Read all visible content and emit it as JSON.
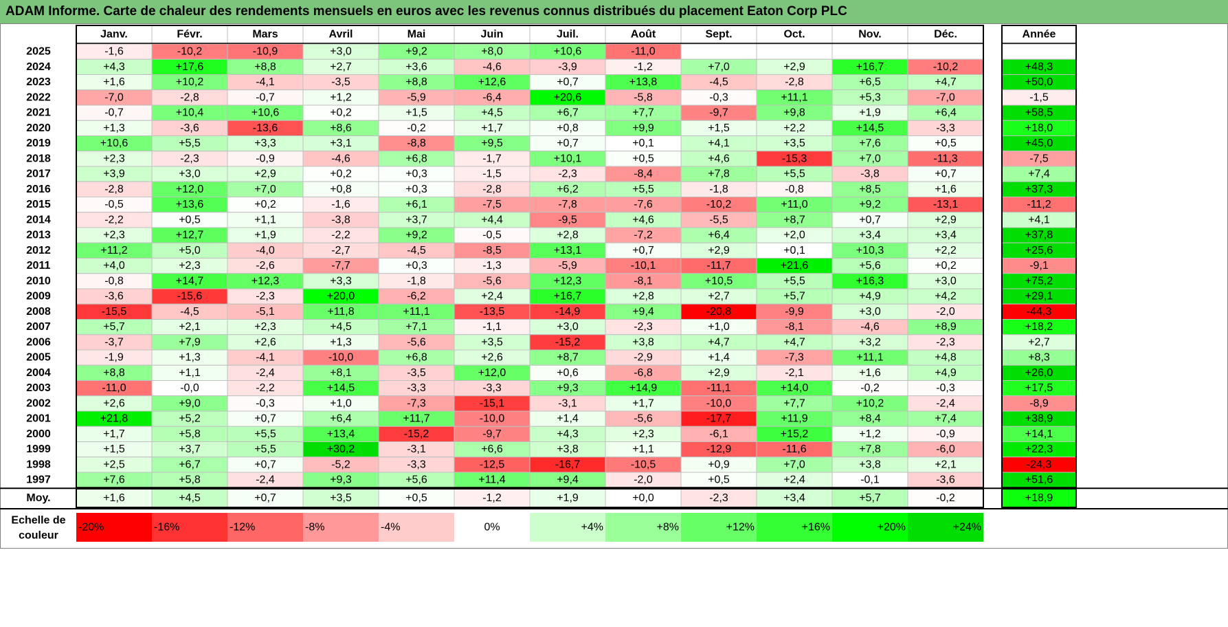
{
  "title": "ADAM Informe. Carte de chaleur des rendements mensuels en euros avec les revenus connus distribués du placement Eaton Corp PLC",
  "chart_data": {
    "type": "heatmap",
    "title": "ADAM Informe. Carte de chaleur des rendements mensuels en euros avec les revenus connus distribués du placement Eaton Corp PLC",
    "months": [
      "Janv.",
      "Févr.",
      "Mars",
      "Avril",
      "Mai",
      "Juin",
      "Juil.",
      "Août",
      "Sept.",
      "Oct.",
      "Nov.",
      "Déc."
    ],
    "year_header": "Année",
    "rows": [
      {
        "year": "2025",
        "values": [
          "-1,6",
          "-10,2",
          "-10,9",
          "+3,0",
          "+9,2",
          "+8,0",
          "+10,6",
          "-11,0",
          "",
          "",
          "",
          ""
        ],
        "annual": ""
      },
      {
        "year": "2024",
        "values": [
          "+4,3",
          "+17,6",
          "+8,8",
          "+2,7",
          "+3,6",
          "-4,6",
          "-3,9",
          "-1,2",
          "+7,0",
          "+2,9",
          "+16,7",
          "-10,2"
        ],
        "annual": "+48,3"
      },
      {
        "year": "2023",
        "values": [
          "+1,6",
          "+10,2",
          "-4,1",
          "-3,5",
          "+8,8",
          "+12,6",
          "+0,7",
          "+13,8",
          "-4,5",
          "-2,8",
          "+6,5",
          "+4,7"
        ],
        "annual": "+50,0"
      },
      {
        "year": "2022",
        "values": [
          "-7,0",
          "-2,8",
          "-0,7",
          "+1,2",
          "-5,9",
          "-6,4",
          "+20,6",
          "-5,8",
          "-0,3",
          "+11,1",
          "+5,3",
          "-7,0"
        ],
        "annual": "-1,5"
      },
      {
        "year": "2021",
        "values": [
          "-0,7",
          "+10,4",
          "+10,6",
          "+0,2",
          "+1,5",
          "+4,5",
          "+6,7",
          "+7,7",
          "-9,7",
          "+9,8",
          "+1,9",
          "+6,4"
        ],
        "annual": "+58,5"
      },
      {
        "year": "2020",
        "values": [
          "+1,3",
          "-3,6",
          "-13,6",
          "+8,6",
          "-0,2",
          "+1,7",
          "+0,8",
          "+9,9",
          "+1,5",
          "+2,2",
          "+14,5",
          "-3,3"
        ],
        "annual": "+18,0"
      },
      {
        "year": "2019",
        "values": [
          "+10,6",
          "+5,5",
          "+3,3",
          "+3,1",
          "-8,8",
          "+9,5",
          "+0,7",
          "+0,1",
          "+4,1",
          "+3,5",
          "+7,6",
          "+0,5"
        ],
        "annual": "+45,0"
      },
      {
        "year": "2018",
        "values": [
          "+2,3",
          "-2,3",
          "-0,9",
          "-4,6",
          "+6,8",
          "-1,7",
          "+10,1",
          "+0,5",
          "+4,6",
          "-15,3",
          "+7,0",
          "-11,3"
        ],
        "annual": "-7,5"
      },
      {
        "year": "2017",
        "values": [
          "+3,9",
          "+3,0",
          "+2,9",
          "+0,2",
          "+0,3",
          "-1,5",
          "-2,3",
          "-8,4",
          "+7,8",
          "+5,5",
          "-3,8",
          "+0,7"
        ],
        "annual": "+7,4"
      },
      {
        "year": "2016",
        "values": [
          "-2,8",
          "+12,0",
          "+7,0",
          "+0,8",
          "+0,3",
          "-2,8",
          "+6,2",
          "+5,5",
          "-1,8",
          "-0,8",
          "+8,5",
          "+1,6"
        ],
        "annual": "+37,3"
      },
      {
        "year": "2015",
        "values": [
          "-0,5",
          "+13,6",
          "+0,2",
          "-1,6",
          "+6,1",
          "-7,5",
          "-7,8",
          "-7,6",
          "-10,2",
          "+11,0",
          "+9,2",
          "-13,1"
        ],
        "annual": "-11,2"
      },
      {
        "year": "2014",
        "values": [
          "-2,2",
          "+0,5",
          "+1,1",
          "-3,8",
          "+3,7",
          "+4,4",
          "-9,5",
          "+4,6",
          "-5,5",
          "+8,7",
          "+0,7",
          "+2,9"
        ],
        "annual": "+4,1"
      },
      {
        "year": "2013",
        "values": [
          "+2,3",
          "+12,7",
          "+1,9",
          "-2,2",
          "+9,2",
          "-0,5",
          "+2,8",
          "-7,2",
          "+6,4",
          "+2,0",
          "+3,4",
          "+3,4"
        ],
        "annual": "+37,8"
      },
      {
        "year": "2012",
        "values": [
          "+11,2",
          "+5,0",
          "-4,0",
          "-2,7",
          "-4,5",
          "-8,5",
          "+13,1",
          "+0,7",
          "+2,9",
          "+0,1",
          "+10,3",
          "+2,2"
        ],
        "annual": "+25,6"
      },
      {
        "year": "2011",
        "values": [
          "+4,0",
          "+2,3",
          "-2,6",
          "-7,7",
          "+0,3",
          "-1,3",
          "-5,9",
          "-10,1",
          "-11,7",
          "+21,6",
          "+5,6",
          "+0,2"
        ],
        "annual": "-9,1"
      },
      {
        "year": "2010",
        "values": [
          "-0,8",
          "+14,7",
          "+12,3",
          "+3,3",
          "-1,8",
          "-5,6",
          "+12,3",
          "-8,1",
          "+10,5",
          "+5,5",
          "+16,3",
          "+3,0"
        ],
        "annual": "+75,2"
      },
      {
        "year": "2009",
        "values": [
          "-3,6",
          "-15,6",
          "-2,3",
          "+20,0",
          "-6,2",
          "+2,4",
          "+16,7",
          "+2,8",
          "+2,7",
          "+5,7",
          "+4,9",
          "+4,2"
        ],
        "annual": "+29,1"
      },
      {
        "year": "2008",
        "values": [
          "-15,5",
          "-4,5",
          "-5,1",
          "+11,8",
          "+11,1",
          "-13,5",
          "-14,9",
          "+9,4",
          "-20,8",
          "-9,9",
          "+3,0",
          "-2,0"
        ],
        "annual": "-44,3"
      },
      {
        "year": "2007",
        "values": [
          "+5,7",
          "+2,1",
          "+2,3",
          "+4,5",
          "+7,1",
          "-1,1",
          "+3,0",
          "-2,3",
          "+1,0",
          "-8,1",
          "-4,6",
          "+8,9"
        ],
        "annual": "+18,2"
      },
      {
        "year": "2006",
        "values": [
          "-3,7",
          "+7,9",
          "+2,6",
          "+1,3",
          "-5,6",
          "+3,5",
          "-15,2",
          "+3,8",
          "+4,7",
          "+4,7",
          "+3,2",
          "-2,3"
        ],
        "annual": "+2,7"
      },
      {
        "year": "2005",
        "values": [
          "-1,9",
          "+1,3",
          "-4,1",
          "-10,0",
          "+6,8",
          "+2,6",
          "+8,7",
          "-2,9",
          "+1,4",
          "-7,3",
          "+11,1",
          "+4,8"
        ],
        "annual": "+8,3"
      },
      {
        "year": "2004",
        "values": [
          "+8,8",
          "+1,1",
          "-2,4",
          "+8,1",
          "-3,5",
          "+12,0",
          "+0,6",
          "-6,8",
          "+2,9",
          "-2,1",
          "+1,6",
          "+4,9"
        ],
        "annual": "+26,0"
      },
      {
        "year": "2003",
        "values": [
          "-11,0",
          "-0,0",
          "-2,2",
          "+14,5",
          "-3,3",
          "-3,3",
          "+9,3",
          "+14,9",
          "-11,1",
          "+14,0",
          "-0,2",
          "-0,3"
        ],
        "annual": "+17,5"
      },
      {
        "year": "2002",
        "values": [
          "+2,6",
          "+9,0",
          "-0,3",
          "+1,0",
          "-7,3",
          "-15,1",
          "-3,1",
          "+1,7",
          "-10,0",
          "+7,7",
          "+10,2",
          "-2,4"
        ],
        "annual": "-8,9"
      },
      {
        "year": "2001",
        "values": [
          "+21,8",
          "+5,2",
          "+0,7",
          "+6,4",
          "+11,7",
          "-10,0",
          "+1,4",
          "-5,6",
          "-17,7",
          "+11,9",
          "+8,4",
          "+7,4"
        ],
        "annual": "+38,9"
      },
      {
        "year": "2000",
        "values": [
          "+1,7",
          "+5,8",
          "+5,5",
          "+13,4",
          "-15,2",
          "-9,7",
          "+4,3",
          "+2,3",
          "-6,1",
          "+15,2",
          "+1,2",
          "-0,9"
        ],
        "annual": "+14,1"
      },
      {
        "year": "1999",
        "values": [
          "+1,5",
          "+3,7",
          "+5,5",
          "+30,2",
          "-3,1",
          "+6,6",
          "+3,8",
          "+1,1",
          "-12,9",
          "-11,6",
          "+7,8",
          "-6,0"
        ],
        "annual": "+22,3"
      },
      {
        "year": "1998",
        "values": [
          "+2,5",
          "+6,7",
          "+0,7",
          "-5,2",
          "-3,3",
          "-12,5",
          "-16,7",
          "-10,5",
          "+0,9",
          "+7,0",
          "+3,8",
          "+2,1"
        ],
        "annual": "-24,3"
      },
      {
        "year": "1997",
        "values": [
          "+7,6",
          "+5,8",
          "-2,4",
          "+9,3",
          "+5,6",
          "+11,4",
          "+9,4",
          "-2,0",
          "+0,5",
          "+2,4",
          "-0,1",
          "-3,6"
        ],
        "annual": "+51,6"
      }
    ],
    "average_row": {
      "label": "Moy.",
      "values": [
        "+1,6",
        "+4,5",
        "+0,7",
        "+3,5",
        "+0,5",
        "-1,2",
        "+1,9",
        "+0,0",
        "-2,3",
        "+3,4",
        "+5,7",
        "-0,2"
      ],
      "annual": "+18,9"
    },
    "scale": {
      "label_line1": "Echelle de",
      "label_line2": "couleur",
      "stops": [
        {
          "label": "-20%",
          "value": -20,
          "color": "#ff0000"
        },
        {
          "label": "-16%",
          "value": -16,
          "color": "#ff3333"
        },
        {
          "label": "-12%",
          "value": -12,
          "color": "#ff6666"
        },
        {
          "label": "-8%",
          "value": -8,
          "color": "#ff9999"
        },
        {
          "label": "-4%",
          "value": -4,
          "color": "#ffcccc"
        },
        {
          "label": "0%",
          "value": 0,
          "color": "#ffffff"
        },
        {
          "label": "+4%",
          "value": 4,
          "color": "#ccffcc"
        },
        {
          "label": "+8%",
          "value": 8,
          "color": "#99ff99"
        },
        {
          "label": "+12%",
          "value": 12,
          "color": "#66ff66"
        },
        {
          "label": "+16%",
          "value": 16,
          "color": "#33ff33"
        },
        {
          "label": "+20%",
          "value": 20,
          "color": "#00ff00"
        },
        {
          "label": "+24%",
          "value": 24,
          "color": "#00dd00"
        }
      ]
    }
  },
  "colors": {
    "title_bar": "#7dc47d",
    "grid": "#bfbfbf",
    "border": "#000000"
  }
}
